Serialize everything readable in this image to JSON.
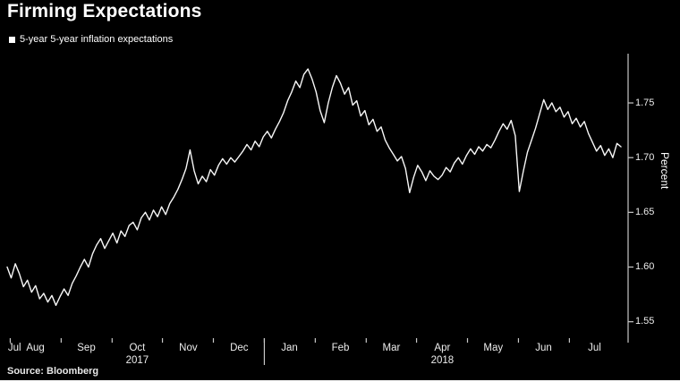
{
  "chart_data": {
    "type": "line",
    "title": "Firming Expectations",
    "legend": "5-year 5-year inflation expectations",
    "source": "Source: Bloomberg",
    "ylabel": "Percent",
    "ylim": [
      1.535,
      1.795
    ],
    "y_ticks": [
      1.55,
      1.6,
      1.65,
      1.7,
      1.75
    ],
    "x_axis": {
      "months": [
        {
          "label": "Jul",
          "t": 0.012
        },
        {
          "label": "Aug",
          "t": 0.046
        },
        {
          "label": "Sep",
          "t": 0.129
        },
        {
          "label": "Oct",
          "t": 0.212
        },
        {
          "label": "Nov",
          "t": 0.295
        },
        {
          "label": "Dec",
          "t": 0.378
        },
        {
          "label": "Jan",
          "t": 0.46
        },
        {
          "label": "Feb",
          "t": 0.543
        },
        {
          "label": "Mar",
          "t": 0.626
        },
        {
          "label": "Apr",
          "t": 0.709
        },
        {
          "label": "May",
          "t": 0.792
        },
        {
          "label": "Jun",
          "t": 0.874
        },
        {
          "label": "Jul",
          "t": 0.957
        }
      ],
      "boundaries": [
        0.005,
        0.088,
        0.171,
        0.253,
        0.336,
        0.419,
        0.502,
        0.585,
        0.667,
        0.75,
        0.833,
        0.916
      ],
      "year_divider_t": 0.419,
      "years": [
        {
          "label": "2017",
          "t": 0.212
        },
        {
          "label": "2018",
          "t": 0.709
        }
      ]
    },
    "grid": false,
    "legend_position": "top-left",
    "colors": {
      "background": "#000000",
      "line": "#f7f7f7",
      "axis": "#c8c8c8",
      "title": "#ffffff",
      "label": "#ededed"
    },
    "values": [
      1.6,
      1.59,
      1.603,
      1.594,
      1.582,
      1.588,
      1.577,
      1.583,
      1.571,
      1.576,
      1.568,
      1.574,
      1.565,
      1.573,
      1.58,
      1.574,
      1.585,
      1.592,
      1.6,
      1.607,
      1.6,
      1.612,
      1.62,
      1.626,
      1.617,
      1.624,
      1.631,
      1.622,
      1.633,
      1.628,
      1.638,
      1.641,
      1.634,
      1.645,
      1.65,
      1.643,
      1.652,
      1.646,
      1.655,
      1.648,
      1.658,
      1.664,
      1.671,
      1.68,
      1.69,
      1.707,
      1.688,
      1.676,
      1.683,
      1.678,
      1.689,
      1.684,
      1.693,
      1.699,
      1.694,
      1.7,
      1.696,
      1.701,
      1.706,
      1.712,
      1.707,
      1.715,
      1.71,
      1.719,
      1.724,
      1.718,
      1.726,
      1.733,
      1.741,
      1.752,
      1.76,
      1.77,
      1.764,
      1.776,
      1.781,
      1.772,
      1.76,
      1.743,
      1.732,
      1.75,
      1.764,
      1.775,
      1.768,
      1.758,
      1.764,
      1.748,
      1.752,
      1.738,
      1.743,
      1.73,
      1.735,
      1.724,
      1.728,
      1.716,
      1.709,
      1.703,
      1.697,
      1.701,
      1.69,
      1.668,
      1.682,
      1.693,
      1.687,
      1.679,
      1.688,
      1.683,
      1.68,
      1.684,
      1.691,
      1.687,
      1.695,
      1.7,
      1.694,
      1.702,
      1.708,
      1.703,
      1.71,
      1.706,
      1.712,
      1.709,
      1.716,
      1.724,
      1.731,
      1.726,
      1.734,
      1.72,
      1.669,
      1.688,
      1.705,
      1.716,
      1.727,
      1.74,
      1.753,
      1.744,
      1.75,
      1.742,
      1.746,
      1.737,
      1.742,
      1.731,
      1.736,
      1.728,
      1.733,
      1.722,
      1.714,
      1.706,
      1.711,
      1.702,
      1.708,
      1.7,
      1.713,
      1.71
    ]
  }
}
